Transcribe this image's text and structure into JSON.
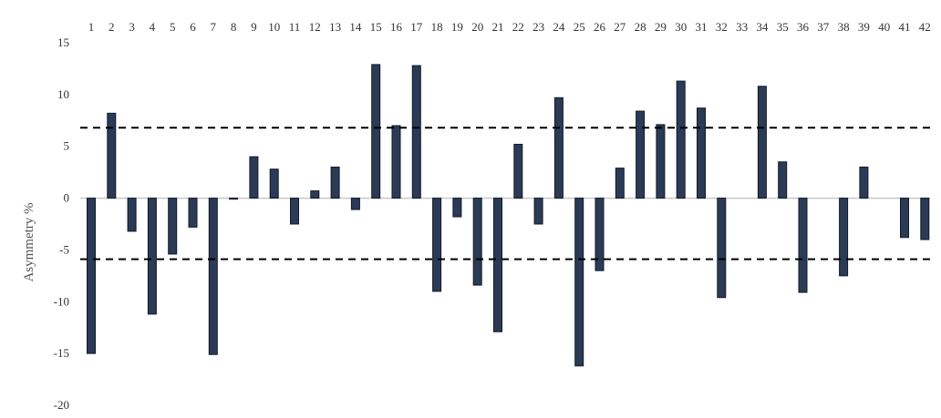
{
  "chart_data": {
    "type": "bar",
    "title": "",
    "xlabel": "",
    "ylabel": "Asymmetry %",
    "ylim": [
      -20,
      15
    ],
    "yticks": [
      15,
      10,
      5,
      0,
      -5,
      -10,
      -15,
      -20
    ],
    "ytick_labels": [
      "15",
      "10",
      "5",
      "0",
      "-5",
      "-10",
      "-15",
      "-20"
    ],
    "categories": [
      "1",
      "2",
      "3",
      "4",
      "5",
      "6",
      "7",
      "8",
      "9",
      "10",
      "11",
      "12",
      "13",
      "14",
      "15",
      "16",
      "17",
      "18",
      "19",
      "20",
      "21",
      "22",
      "23",
      "24",
      "25",
      "26",
      "27",
      "28",
      "29",
      "30",
      "31",
      "32",
      "33",
      "34",
      "35",
      "36",
      "37",
      "38",
      "39",
      "40",
      "41",
      "42"
    ],
    "values": [
      -15.0,
      8.2,
      -3.2,
      -11.2,
      -5.4,
      -2.8,
      -15.1,
      -0.1,
      4.0,
      2.8,
      -2.5,
      0.7,
      3.0,
      -1.1,
      12.9,
      7.0,
      12.8,
      -9.0,
      -1.8,
      -8.4,
      -12.9,
      5.2,
      -2.5,
      9.7,
      -16.2,
      -7.0,
      2.9,
      8.4,
      7.1,
      11.3,
      8.7,
      -9.6,
      0.0,
      10.8,
      3.5,
      -9.1,
      0.0,
      -7.5,
      3.0,
      0.0,
      -3.8,
      -4.0
    ],
    "reference_lines": [
      6.8,
      -5.9
    ],
    "bar_color": "#2b3a55",
    "bar_edge_color": "#111a2b",
    "zero_line_color": "#c8c8c8",
    "reference_line_color": "#000000",
    "grid": false,
    "legend": false,
    "category_labels_position": "top"
  }
}
